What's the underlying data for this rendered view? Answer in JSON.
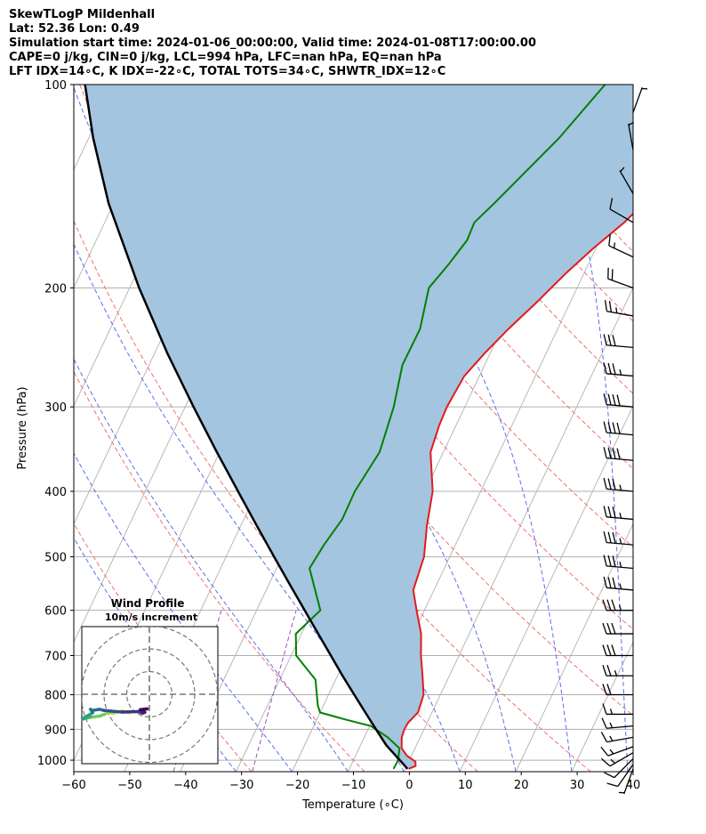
{
  "header": {
    "title": "SkewTLogP Mildenhall",
    "location": "Lat: 52.36   Lon: 0.49",
    "times": "Simulation start time: 2024-01-06_00:00:00, Valid time: 2024-01-08T17:00:00.00",
    "params": "CAPE=0 j/kg, CIN=0 j/kg, LCL=994 hPa, LFC=nan hPa, EQ=nan hPa",
    "indices": "LFT IDX=14∘C, K IDX=-22∘C, TOTAL TOTS=34∘C, SHWTR_IDX=12∘C"
  },
  "colors": {
    "temperature": "#e41a1c",
    "dewpoint": "#008000",
    "parcel": "#000000",
    "cape_fill": "#a3c5e0",
    "dry_adiabat": "#f07070",
    "moist_adiabat": "#5a6ef0",
    "isotherm": "#b0b0b0",
    "mixing_ratio": "#9b4fc9"
  },
  "chart_data": {
    "type": "skew-t log-p",
    "xlabel": "Temperature (∘C)",
    "ylabel": "Pressure (hPa)",
    "xlim": [
      -60,
      40
    ],
    "ylim": [
      1040,
      100
    ],
    "x_ticks": [
      -60,
      -50,
      -40,
      -30,
      -20,
      -10,
      0,
      10,
      20,
      30,
      40
    ],
    "x_tick_labels": [
      "−60",
      "−50",
      "−40",
      "−30",
      "−20",
      "−10",
      "0",
      "10",
      "20",
      "30",
      "40"
    ],
    "y_ticks": [
      1000,
      900,
      800,
      700,
      600,
      500,
      400,
      300,
      200,
      100
    ],
    "y_tick_labels": [
      "1000",
      "900",
      "800",
      "700",
      "600",
      "500",
      "400",
      "300",
      "200",
      "100"
    ],
    "skew_c_per_decade": 57.2,
    "series": [
      {
        "name": "temperature",
        "points": [
          [
            1030,
            0.6
          ],
          [
            1020,
            1.6
          ],
          [
            1005,
            1.2
          ],
          [
            985,
            -0.8
          ],
          [
            960,
            -2.4
          ],
          [
            925,
            -3.3
          ],
          [
            900,
            -3.5
          ],
          [
            880,
            -3.4
          ],
          [
            850,
            -2.5
          ],
          [
            800,
            -3.0
          ],
          [
            750,
            -4.8
          ],
          [
            700,
            -6.8
          ],
          [
            650,
            -8.6
          ],
          [
            600,
            -11.4
          ],
          [
            560,
            -13.7
          ],
          [
            500,
            -14.6
          ],
          [
            450,
            -16.7
          ],
          [
            400,
            -18.6
          ],
          [
            350,
            -22.3
          ],
          [
            320,
            -23.0
          ],
          [
            300,
            -23.2
          ],
          [
            270,
            -22.7
          ],
          [
            250,
            -21.0
          ],
          [
            230,
            -18.8
          ],
          [
            210,
            -16.0
          ],
          [
            190,
            -13.2
          ],
          [
            175,
            -10.5
          ],
          [
            160,
            -7.1
          ],
          [
            145,
            -4.3
          ],
          [
            133,
            -2.4
          ],
          [
            120,
            -0.9
          ],
          [
            110,
            0.8
          ],
          [
            100,
            3.4
          ]
        ]
      },
      {
        "name": "dewpoint",
        "points": [
          [
            1030,
            -2.1
          ],
          [
            1000,
            -2.0
          ],
          [
            960,
            -2.8
          ],
          [
            925,
            -5.8
          ],
          [
            890,
            -9.8
          ],
          [
            870,
            -15.0
          ],
          [
            850,
            -20.0
          ],
          [
            830,
            -21.0
          ],
          [
            760,
            -23.6
          ],
          [
            700,
            -29.1
          ],
          [
            650,
            -31.0
          ],
          [
            600,
            -28.6
          ],
          [
            520,
            -34.1
          ],
          [
            480,
            -33.5
          ],
          [
            440,
            -32.4
          ],
          [
            400,
            -32.5
          ],
          [
            350,
            -31.4
          ],
          [
            300,
            -32.7
          ],
          [
            260,
            -34.7
          ],
          [
            230,
            -34.6
          ],
          [
            200,
            -36.5
          ],
          [
            185,
            -35.0
          ],
          [
            170,
            -33.7
          ],
          [
            160,
            -33.9
          ],
          [
            150,
            -32.0
          ],
          [
            120,
            -25.9
          ],
          [
            100,
            -22.2
          ]
        ]
      },
      {
        "name": "parcel",
        "points": [
          [
            1030,
            0.4
          ],
          [
            1000,
            -1.7
          ],
          [
            950,
            -5.4
          ],
          [
            900,
            -8.6
          ],
          [
            850,
            -11.9
          ],
          [
            800,
            -15.4
          ],
          [
            750,
            -19.1
          ],
          [
            700,
            -22.9
          ],
          [
            650,
            -27.0
          ],
          [
            600,
            -31.4
          ],
          [
            550,
            -36.2
          ],
          [
            500,
            -41.4
          ],
          [
            450,
            -47.1
          ],
          [
            400,
            -53.4
          ],
          [
            350,
            -60.5
          ],
          [
            300,
            -68.5
          ],
          [
            250,
            -77.7
          ],
          [
            200,
            -88.3
          ],
          [
            150,
            -100.9
          ],
          [
            120,
            -109.2
          ],
          [
            100,
            -115.2
          ]
        ]
      }
    ],
    "dry_adiabats_theta_c": [
      -30,
      -10,
      10,
      30,
      50,
      70,
      90,
      110,
      130,
      150,
      170,
      190
    ],
    "moist_adiabats_start_c": [
      -30,
      -20,
      -10,
      0,
      10,
      20,
      30,
      40
    ],
    "mixing_ratio_lines_gkg": [
      0.1,
      0.4
    ],
    "wind_barbs": [
      {
        "p": 1030,
        "dir": 200,
        "kt": 5
      },
      {
        "p": 1015,
        "dir": 215,
        "kt": 10
      },
      {
        "p": 995,
        "dir": 225,
        "kt": 10
      },
      {
        "p": 975,
        "dir": 240,
        "kt": 15
      },
      {
        "p": 955,
        "dir": 250,
        "kt": 15
      },
      {
        "p": 925,
        "dir": 260,
        "kt": 15
      },
      {
        "p": 890,
        "dir": 265,
        "kt": 15
      },
      {
        "p": 855,
        "dir": 270,
        "kt": 15
      },
      {
        "p": 800,
        "dir": 270,
        "kt": 20
      },
      {
        "p": 750,
        "dir": 270,
        "kt": 25
      },
      {
        "p": 700,
        "dir": 270,
        "kt": 30
      },
      {
        "p": 650,
        "dir": 270,
        "kt": 30
      },
      {
        "p": 600,
        "dir": 270,
        "kt": 35
      },
      {
        "p": 560,
        "dir": 275,
        "kt": 35
      },
      {
        "p": 520,
        "dir": 275,
        "kt": 35
      },
      {
        "p": 480,
        "dir": 275,
        "kt": 35
      },
      {
        "p": 440,
        "dir": 275,
        "kt": 35
      },
      {
        "p": 400,
        "dir": 275,
        "kt": 35
      },
      {
        "p": 360,
        "dir": 275,
        "kt": 40
      },
      {
        "p": 330,
        "dir": 275,
        "kt": 40
      },
      {
        "p": 300,
        "dir": 275,
        "kt": 40
      },
      {
        "p": 270,
        "dir": 275,
        "kt": 35
      },
      {
        "p": 245,
        "dir": 275,
        "kt": 30
      },
      {
        "p": 220,
        "dir": 280,
        "kt": 25
      },
      {
        "p": 200,
        "dir": 290,
        "kt": 20
      },
      {
        "p": 180,
        "dir": 295,
        "kt": 15
      },
      {
        "p": 160,
        "dir": 300,
        "kt": 10
      },
      {
        "p": 145,
        "dir": 330,
        "kt": 5
      },
      {
        "p": 125,
        "dir": 350,
        "kt": 5
      },
      {
        "p": 110,
        "dir": 20,
        "kt": 5
      }
    ],
    "hodograph": {
      "title": "Wind Profile",
      "subtitle": "10m/s increment",
      "ring_speeds_ms": [
        10,
        20,
        30
      ],
      "points_uv": [
        [
          -10,
          1
        ],
        [
          -9,
          0.5
        ],
        [
          -12,
          1.2
        ],
        [
          -14,
          0.8
        ],
        [
          -16,
          0.3
        ],
        [
          -18,
          0.6
        ],
        [
          -20,
          -0.3
        ],
        [
          -22,
          -1
        ],
        [
          -26,
          -1.5
        ],
        [
          -28,
          -2
        ],
        [
          -30,
          -2.5
        ],
        [
          -25,
          0.5
        ],
        [
          -26,
          2
        ],
        [
          -25,
          1.5
        ],
        [
          -22,
          2
        ],
        [
          -20,
          1.5
        ],
        [
          -17,
          1.2
        ],
        [
          -12,
          0.8
        ],
        [
          -5,
          1
        ],
        [
          -3,
          0.3
        ],
        [
          -2,
          0.7
        ],
        [
          -4,
          1.8
        ],
        [
          -1,
          2.2
        ]
      ]
    }
  }
}
